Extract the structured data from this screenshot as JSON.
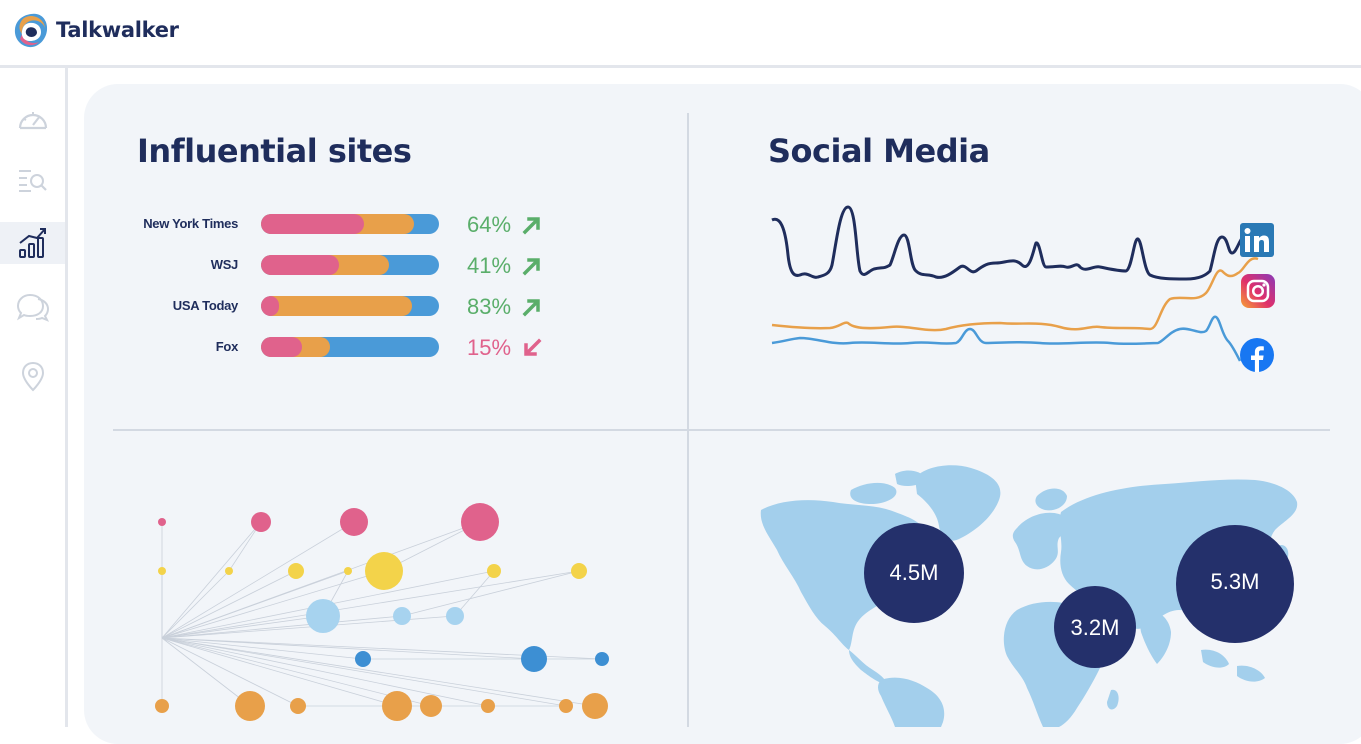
{
  "brand": {
    "name": "Talkwalker"
  },
  "sidebar": {
    "items": [
      {
        "icon": "speedometer-icon",
        "active": false
      },
      {
        "icon": "search-list-icon",
        "active": false
      },
      {
        "icon": "analytics-chart-icon",
        "active": true
      },
      {
        "icon": "chat-bubbles-icon",
        "active": false
      },
      {
        "icon": "location-pin-icon",
        "active": false
      }
    ]
  },
  "influential": {
    "title": "Influential sites",
    "rows": [
      {
        "label": "New York Times",
        "percent": "64%",
        "direction": "up",
        "pink": 0.58,
        "orange": 0.86
      },
      {
        "label": "WSJ",
        "percent": "41%",
        "direction": "up",
        "pink": 0.44,
        "orange": 0.72
      },
      {
        "label": "USA Today",
        "percent": "83%",
        "direction": "up",
        "pink": 0.1,
        "orange": 0.85
      },
      {
        "label": "Fox",
        "percent": "15%",
        "direction": "down",
        "pink": 0.23,
        "orange": 0.39
      }
    ],
    "colors": {
      "pink": "#e0628c",
      "orange": "#e8a04a",
      "blue": "#4a9ad8",
      "up": "#5aae6a",
      "down": "#e0628c"
    }
  },
  "social": {
    "title": "Social Media",
    "networks": [
      "LinkedIn",
      "Instagram",
      "Facebook"
    ],
    "colors": {
      "linkedin": "#1f2d5c",
      "instagram": "#e8a04a",
      "facebook": "#4a9ad8"
    }
  },
  "map": {
    "bubbles": [
      {
        "label": "4.5M"
      },
      {
        "label": "3.2M"
      },
      {
        "label": "5.3M"
      }
    ],
    "colors": {
      "land": "#a3cfec",
      "bubble": "#24306b"
    }
  }
}
